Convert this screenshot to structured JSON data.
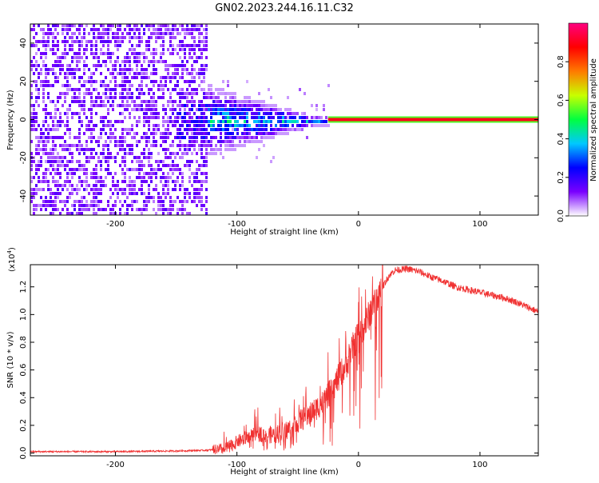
{
  "title": "GN02.2023.244.16.11.C32",
  "chart_data": [
    {
      "type": "heatmap",
      "xlabel": "Height of straight line (km)",
      "ylabel": "Frequency (Hz)",
      "xlim": [
        -270,
        148
      ],
      "ylim": [
        -50,
        50
      ],
      "xticks": [
        -200,
        -100,
        0,
        100
      ],
      "yticks": [
        -40,
        -20,
        0,
        20,
        40
      ],
      "xtick_labels": [
        "-200",
        "-100",
        "0",
        "100"
      ],
      "ytick_labels": [
        "-40",
        "-20",
        "0",
        "20",
        "40"
      ],
      "regions": {
        "noise_until_km": -125,
        "spread_start_km": -150,
        "narrow_line_from_km": -25,
        "line_frequency_hz": 0
      },
      "colorbar": {
        "label": "Normalized spectral amplitude",
        "range": [
          0,
          1
        ],
        "ticks": [
          0.0,
          0.2,
          0.4,
          0.6,
          0.8
        ],
        "tick_labels": [
          "0.0",
          "0.2",
          "0.4",
          "0.6",
          "0.8"
        ],
        "colormap": [
          "#ffffff",
          "#7a00ff",
          "#0000ff",
          "#00c8ff",
          "#00ff40",
          "#c8ff00",
          "#ff7a00",
          "#ff0000",
          "#ff0080"
        ]
      }
    },
    {
      "type": "line",
      "xlabel": "Height of straight line (km)",
      "ylabel": "SNR (10 * v/v)",
      "scale_label": "(x10",
      "scale_exp": "4",
      "scale_close": ")",
      "xlim": [
        -270,
        148
      ],
      "ylim": [
        -0.02,
        1.36
      ],
      "xticks": [
        -200,
        -100,
        0,
        100
      ],
      "yticks": [
        0.0,
        0.2,
        0.4,
        0.6,
        0.8,
        1.0,
        1.2
      ],
      "xtick_labels": [
        "-200",
        "-100",
        "0",
        "100"
      ],
      "ytick_labels": [
        "0.0",
        "0.2",
        "0.4",
        "0.6",
        "0.8",
        "1.0",
        "1.2"
      ],
      "series": [
        {
          "name": "SNR",
          "color": "#f03030",
          "x": [
            -270,
            -200,
            -150,
            -125,
            -110,
            -100,
            -90,
            -80,
            -70,
            -60,
            -50,
            -40,
            -30,
            -20,
            -15,
            -10,
            -5,
            0,
            5,
            10,
            15,
            20,
            25,
            30,
            40,
            50,
            60,
            70,
            80,
            90,
            100,
            110,
            120,
            130,
            140,
            148
          ],
          "values": [
            0.01,
            0.01,
            0.015,
            0.02,
            0.03,
            0.08,
            0.12,
            0.14,
            0.13,
            0.16,
            0.22,
            0.28,
            0.36,
            0.48,
            0.58,
            0.62,
            0.76,
            0.86,
            0.92,
            1.02,
            1.1,
            1.2,
            1.28,
            1.32,
            1.33,
            1.31,
            1.27,
            1.24,
            1.2,
            1.18,
            1.16,
            1.14,
            1.12,
            1.09,
            1.05,
            1.02
          ]
        }
      ]
    }
  ]
}
